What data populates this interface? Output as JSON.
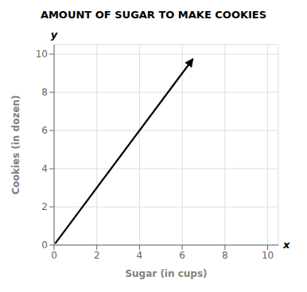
{
  "chart_data": {
    "type": "line",
    "title": "AMOUNT OF SUGAR TO MAKE COOKIES",
    "xlabel": "Sugar (in cups)",
    "ylabel": "Cookies (in dozen)",
    "annotations": [
      "x",
      "y"
    ],
    "x": [
      0.05,
      6.5
    ],
    "values": [
      0.075,
      9.75
    ],
    "color": "#000000",
    "marker": "arrow",
    "xlim": [
      0,
      10.5
    ],
    "ylim": [
      0,
      10.5
    ],
    "xticks": [
      0,
      2,
      4,
      6,
      8,
      10
    ],
    "yticks": [
      0,
      2,
      4,
      6,
      8,
      10
    ],
    "grid": true
  }
}
